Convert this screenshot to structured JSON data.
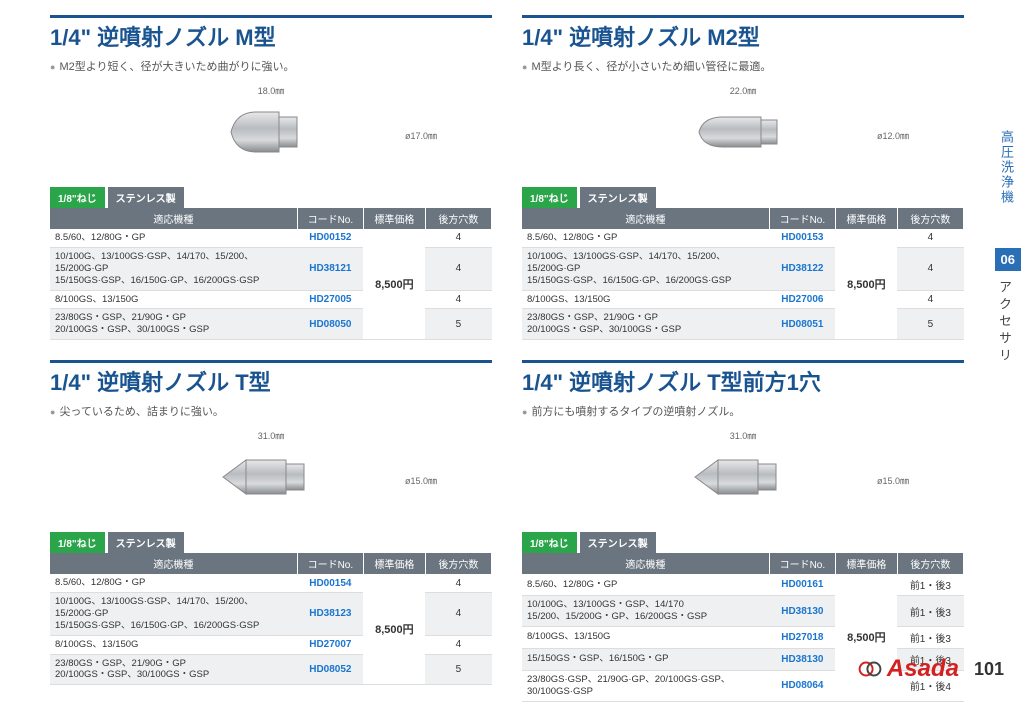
{
  "page_number": "101",
  "side": {
    "category": "高圧洗浄機",
    "num": "06",
    "sub": "アクセサリ"
  },
  "brand": "Asada",
  "badges": {
    "thread": "1/8\"ねじ",
    "material": "ステンレス製"
  },
  "table_headers": [
    "適応機種",
    "コードNo.",
    "標準価格",
    "後方穴数"
  ],
  "sections": [
    {
      "title": "1/4\" 逆噴射ノズル M型",
      "sub": "M2型より短く、径が大きいため曲がりに強い。",
      "dim_w": "18.0㎜",
      "dim_h": "ø17.0㎜",
      "shape": "dome",
      "price": "8,500円",
      "rows": [
        {
          "model": "8.5/60、12/80G・GP",
          "code": "HD00152",
          "holes": "4"
        },
        {
          "model": "10/100G、13/100GS·GSP、14/170、15/200、15/200G·GP\n15/150GS·GSP、16/150G·GP、16/200GS·GSP",
          "code": "HD38121",
          "holes": "4"
        },
        {
          "model": "8/100GS、13/150G",
          "code": "HD27005",
          "holes": "4"
        },
        {
          "model": "23/80GS・GSP、21/90G・GP\n20/100GS・GSP、30/100GS・GSP",
          "code": "HD08050",
          "holes": "5"
        }
      ]
    },
    {
      "title": "1/4\" 逆噴射ノズル M2型",
      "sub": "M型より長く、径が小さいため細い管径に最適。",
      "dim_w": "22.0㎜",
      "dim_h": "ø12.0㎜",
      "shape": "dome-long",
      "price": "8,500円",
      "rows": [
        {
          "model": "8.5/60、12/80G・GP",
          "code": "HD00153",
          "holes": "4"
        },
        {
          "model": "10/100G、13/100GS·GSP、14/170、15/200、15/200G·GP\n15/150GS·GSP、16/150G·GP、16/200GS·GSP",
          "code": "HD38122",
          "holes": "4"
        },
        {
          "model": "8/100GS、13/150G",
          "code": "HD27006",
          "holes": "4"
        },
        {
          "model": "23/80GS・GSP、21/90G・GP\n20/100GS・GSP、30/100GS・GSP",
          "code": "HD08051",
          "holes": "5"
        }
      ]
    },
    {
      "title": "1/4\" 逆噴射ノズル T型",
      "sub": "尖っているため、詰まりに強い。",
      "dim_w": "31.0㎜",
      "dim_h": "ø15.0㎜",
      "shape": "cone",
      "price": "8,500円",
      "rows": [
        {
          "model": "8.5/60、12/80G・GP",
          "code": "HD00154",
          "holes": "4"
        },
        {
          "model": "10/100G、13/100GS·GSP、14/170、15/200、15/200G·GP\n15/150GS·GSP、16/150G·GP、16/200GS·GSP",
          "code": "HD38123",
          "holes": "4"
        },
        {
          "model": "8/100GS、13/150G",
          "code": "HD27007",
          "holes": "4"
        },
        {
          "model": "23/80GS・GSP、21/90G・GP\n20/100GS・GSP、30/100GS・GSP",
          "code": "HD08052",
          "holes": "5"
        }
      ]
    },
    {
      "title": "1/4\" 逆噴射ノズル T型前方1穴",
      "sub": "前方にも噴射するタイプの逆噴射ノズル。",
      "dim_w": "31.0㎜",
      "dim_h": "ø15.0㎜",
      "shape": "cone",
      "price": "8,500円",
      "rows": [
        {
          "model": "8.5/60、12/80G・GP",
          "code": "HD00161",
          "holes": "前1・後3"
        },
        {
          "model": "10/100G、13/100GS・GSP、14/170\n15/200、15/200G・GP、16/200GS・GSP",
          "code": "HD38130",
          "holes": "前1・後3"
        },
        {
          "model": "8/100GS、13/150G",
          "code": "HD27018",
          "holes": "前1・後3"
        },
        {
          "model": "15/150GS・GSP、16/150G・GP",
          "code": "HD38130",
          "holes": "前1・後3"
        },
        {
          "model": "23/80GS·GSP、21/90G·GP、20/100GS·GSP、30/100GS·GSP",
          "code": "HD08064",
          "holes": "前1・後4"
        }
      ]
    }
  ]
}
